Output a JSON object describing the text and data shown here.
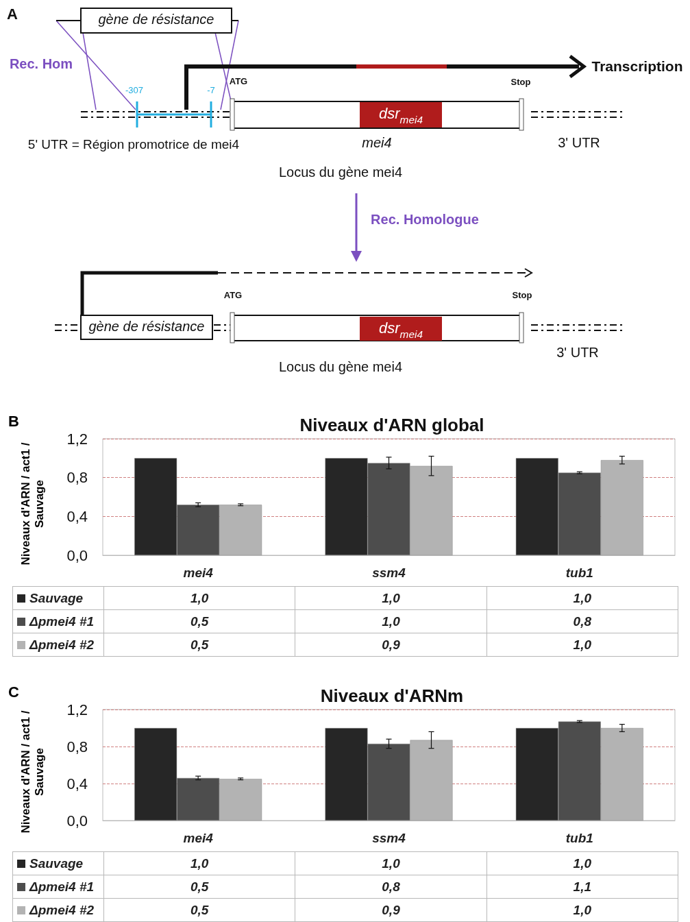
{
  "chart_data": [
    {
      "type": "other",
      "title": "A",
      "annotations": [
        "gène de résistance",
        "Rec. Hom",
        "-307",
        "-7",
        "ATG",
        "Stop",
        "Transcription",
        "dsr$_{mei4}$",
        "5' UTR = Région promotrice de mei4",
        "mei4",
        "3' UTR",
        "Locus du gène mei4",
        "Rec. Homologue",
        "ATG",
        "Stop",
        "gène de résistance",
        "dsr$_{mei4}$",
        "3' UTR",
        "Locus du gène mei4"
      ]
    },
    {
      "type": "bar",
      "title": "Niveaux d'ARN global",
      "ylabel": "Niveaux d'ARN / act1 / Sauvage",
      "annotations": [
        "B"
      ],
      "categories": [
        "mei4",
        "ssm4",
        "tub1"
      ],
      "series": [
        {
          "name": "Sauvage",
          "color": "#262626",
          "values": [
            1.0,
            1.0,
            1.0
          ],
          "value_labels": [
            "1,0",
            "1,0",
            "1,0"
          ]
        },
        {
          "name": "Δpmei4 #1",
          "color": "#4d4d4d",
          "values": [
            0.52,
            0.95,
            0.85
          ],
          "errors": [
            0.02,
            0.06,
            0.01
          ],
          "value_labels": [
            "0,5",
            "1,0",
            "0,8"
          ]
        },
        {
          "name": "Δpmei4 #2",
          "color": "#b3b3b3",
          "values": [
            0.52,
            0.92,
            0.98
          ],
          "errors": [
            0.01,
            0.1,
            0.04
          ],
          "value_labels": [
            "0,5",
            "0,9",
            "1,0"
          ]
        }
      ],
      "ylim": [
        0,
        1.2
      ],
      "yticks": [
        {
          "value": 0,
          "label": "0,0"
        },
        {
          "value": 0.4,
          "label": "0,4"
        },
        {
          "value": 0.8,
          "label": "0,8"
        },
        {
          "value": 1.2,
          "label": "1,2"
        }
      ],
      "grid": "y",
      "legend": "bottom left"
    },
    {
      "type": "bar",
      "title": "Niveaux d'ARNm",
      "ylabel": "Niveaux d'ARN / act1 / Sauvage",
      "annotations": [
        "C"
      ],
      "categories": [
        "mei4",
        "ssm4",
        "tub1"
      ],
      "series": [
        {
          "name": "Sauvage",
          "color": "#262626",
          "values": [
            1.0,
            1.0,
            1.0
          ],
          "value_labels": [
            "1,0",
            "1,0",
            "1,0"
          ]
        },
        {
          "name": "Δpmei4 #1",
          "color": "#4d4d4d",
          "values": [
            0.46,
            0.83,
            1.07
          ],
          "errors": [
            0.02,
            0.05,
            0.01
          ],
          "value_labels": [
            "0,5",
            "0,8",
            "1,1"
          ]
        },
        {
          "name": "Δpmei4 #2",
          "color": "#b3b3b3",
          "values": [
            0.45,
            0.87,
            1.0
          ],
          "errors": [
            0.01,
            0.09,
            0.04
          ],
          "value_labels": [
            "0,5",
            "0,9",
            "1,0"
          ]
        }
      ],
      "ylim": [
        0,
        1.2
      ],
      "yticks": [
        {
          "value": 0,
          "label": "0,0"
        },
        {
          "value": 0.4,
          "label": "0,4"
        },
        {
          "value": 0.8,
          "label": "0,8"
        },
        {
          "value": 1.2,
          "label": "1,2"
        }
      ],
      "grid": "y",
      "legend": "bottom left"
    }
  ]
}
